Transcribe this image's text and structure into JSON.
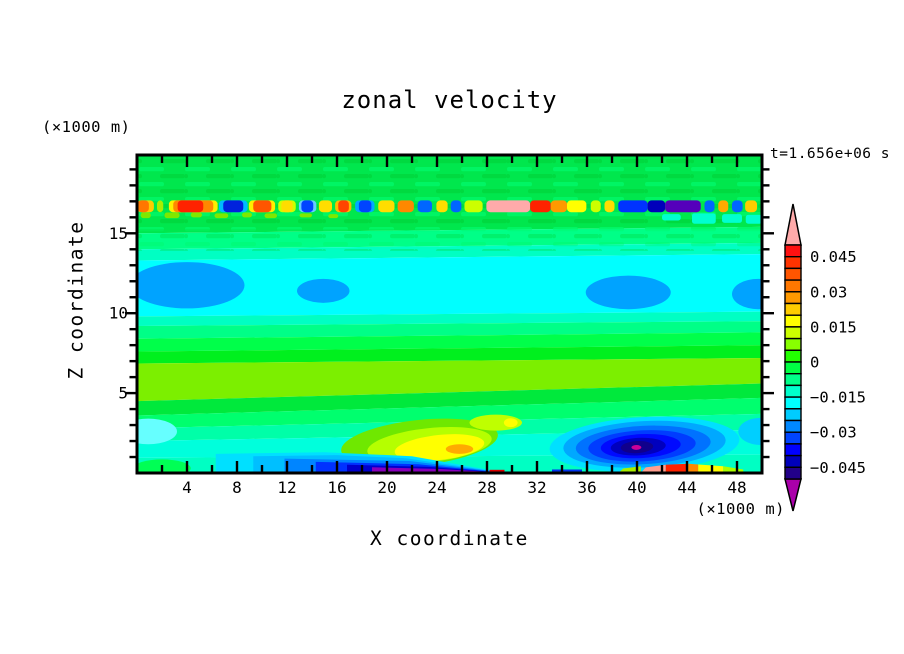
{
  "page": {
    "background": "#ffffff"
  },
  "chart_data": {
    "type": "filled_contour",
    "title": "zonal velocity",
    "timestamp": "t=1.656e+06 s",
    "xlabel": "X coordinate",
    "x_units": "(×1000 m)",
    "ylabel": "Z coordinate",
    "y_units": "(×1000 m)",
    "x_axis": {
      "min": 0,
      "max": 50,
      "major_step": 4,
      "minor_step": 2,
      "labels": [
        4,
        8,
        12,
        16,
        20,
        24,
        28,
        32,
        36,
        40,
        44,
        48
      ]
    },
    "z_axis": {
      "min": 0,
      "max": 19.9,
      "major_step": 5,
      "minor_step": 1,
      "labels": [
        5,
        10,
        15
      ]
    },
    "colorbar": {
      "labels": [
        "0.045",
        "0.03",
        "0.015",
        "0",
        "−0.015",
        "−0.03",
        "−0.045"
      ],
      "label_step": 0.015,
      "level_step": 0.005,
      "colors": [
        "#FF1111",
        "#FF3300",
        "#FF5500",
        "#FF7700",
        "#FF9900",
        "#FFCC00",
        "#FFFF00",
        "#CCFF00",
        "#88FF00",
        "#22FF00",
        "#00FF44",
        "#00FF88",
        "#00FFCC",
        "#00FFFF",
        "#00CCFF",
        "#0088FF",
        "#0044FF",
        "#0000FF",
        "#0000BB",
        "#220088"
      ],
      "over": "#FFAAAA",
      "under": "#AA00AA"
    },
    "field": {
      "bands": [
        [
          19.9,
          19.9,
          15.0,
          15.4,
          "#00E74D"
        ],
        [
          15.0,
          15.4,
          14.0,
          14.4,
          "#00FF87"
        ],
        [
          14.0,
          14.4,
          13.3,
          13.7,
          "#00FFC3"
        ],
        [
          13.3,
          13.7,
          9.8,
          10.1,
          "#00FFFF"
        ],
        [
          9.8,
          10.1,
          9.2,
          9.5,
          "#00FFC3"
        ],
        [
          9.2,
          9.5,
          8.4,
          8.8,
          "#00FF87"
        ],
        [
          8.4,
          8.8,
          7.6,
          8.0,
          "#00FF4A"
        ],
        [
          7.6,
          8.0,
          6.85,
          7.2,
          "#00F01E"
        ],
        [
          6.85,
          7.2,
          4.5,
          5.6,
          "#7CEF00"
        ],
        [
          4.5,
          5.6,
          3.6,
          4.7,
          "#00E93C"
        ],
        [
          3.6,
          4.7,
          2.8,
          3.7,
          "#00FF6E"
        ],
        [
          2.8,
          3.7,
          2.0,
          2.7,
          "#00FFA8"
        ],
        [
          2.0,
          2.7,
          0.95,
          1.15,
          "#00FFDC"
        ],
        [
          0.95,
          1.15,
          0,
          0,
          "#00FFC3"
        ]
      ],
      "mottle": {
        "light": "#00F768",
        "dark": "#00D83E",
        "z0": 15.25,
        "z1": 19.9,
        "z0b": 13.9,
        "z1b": 15.25
      },
      "features": [
        [
          "e",
          4.0,
          11.75,
          4.6,
          1.45,
          "#00A3FF",
          0
        ],
        [
          "e",
          14.9,
          11.4,
          2.1,
          0.75,
          "#00A3FF",
          0
        ],
        [
          "e",
          39.3,
          11.3,
          3.4,
          1.05,
          "#00A3FF",
          0
        ],
        [
          "e",
          49.7,
          11.2,
          2.1,
          0.95,
          "#00A3FF",
          0
        ],
        [
          "e",
          0.9,
          2.6,
          2.3,
          0.8,
          "#66FFFF",
          0
        ],
        [
          "e",
          2.0,
          0.3,
          2.3,
          0.55,
          "#00FF55",
          0
        ],
        [
          "e",
          22.6,
          1.9,
          6.3,
          1.42,
          "#6FE800",
          -6
        ],
        [
          "e",
          23.4,
          1.75,
          5.0,
          1.06,
          "#B5FF00",
          -6
        ],
        [
          "e",
          24.2,
          1.6,
          3.6,
          0.78,
          "#FFFF00",
          -6
        ],
        [
          "e",
          25.8,
          1.5,
          1.1,
          0.3,
          "#FFAA00",
          0
        ],
        [
          "e",
          28.7,
          3.15,
          2.1,
          0.5,
          "#BFFF00",
          0
        ],
        [
          "e",
          29.9,
          3.15,
          0.55,
          0.28,
          "#FFFF00",
          0
        ],
        [
          "p",
          "#00E0FF",
          [
            [
              6.3,
              0
            ],
            [
              6.3,
              1.2
            ],
            [
              15,
              1.3
            ],
            [
              22,
              1.05
            ],
            [
              28.5,
              0.15
            ],
            [
              28.5,
              0
            ]
          ]
        ],
        [
          "p",
          "#00BFFF",
          [
            [
              9.3,
              0
            ],
            [
              9.3,
              1.05
            ],
            [
              16,
              1.12
            ],
            [
              21.5,
              0.92
            ],
            [
              28.55,
              0.12
            ],
            [
              28.55,
              0
            ]
          ]
        ],
        [
          "p",
          "#0085FF",
          [
            [
              11.8,
              0
            ],
            [
              11.8,
              0.9
            ],
            [
              21.8,
              0.75
            ],
            [
              28.55,
              0.1
            ],
            [
              28.55,
              0
            ]
          ]
        ],
        [
          "p",
          "#0031FF",
          [
            [
              14.3,
              0
            ],
            [
              14.3,
              0.7
            ],
            [
              22.5,
              0.55
            ],
            [
              28.55,
              0.08
            ],
            [
              28.55,
              0
            ]
          ]
        ],
        [
          "p",
          "#0000CC",
          [
            [
              16.8,
              0
            ],
            [
              16.8,
              0.52
            ],
            [
              23.4,
              0.38
            ],
            [
              28.55,
              0.06
            ],
            [
              28.55,
              0
            ]
          ]
        ],
        [
          "p",
          "#8800BB",
          [
            [
              18.8,
              0
            ],
            [
              18.8,
              0.36
            ],
            [
              24.3,
              0.25
            ],
            [
              28.6,
              0.05
            ],
            [
              28.6,
              0
            ]
          ]
        ],
        [
          "e",
          40.6,
          1.8,
          7.6,
          1.7,
          "#00E0FF",
          -3
        ],
        [
          "e",
          40.6,
          1.8,
          6.5,
          1.45,
          "#00A8FF",
          -3
        ],
        [
          "e",
          40.5,
          1.75,
          5.4,
          1.2,
          "#0072FF",
          -3
        ],
        [
          "e",
          40.4,
          1.7,
          4.3,
          0.97,
          "#003CFF",
          -3
        ],
        [
          "e",
          40.3,
          1.68,
          3.2,
          0.75,
          "#000AFF",
          -3
        ],
        [
          "e",
          40.1,
          1.65,
          2.2,
          0.55,
          "#0000BE",
          -3
        ],
        [
          "e",
          40.0,
          1.62,
          1.3,
          0.38,
          "#10008C",
          -3
        ],
        [
          "e",
          39.95,
          1.6,
          0.4,
          0.15,
          "#CC0099",
          0
        ],
        [
          "e",
          49.9,
          2.6,
          1.8,
          0.85,
          "#00CFFF",
          0
        ],
        [
          "r",
          33.2,
          35.6,
          0,
          0.22,
          "#0033EE"
        ],
        [
          "p",
          "#AAEE00",
          [
            [
              38.5,
              0
            ],
            [
              38.9,
              0.28
            ],
            [
              40.3,
              0.42
            ],
            [
              40.3,
              0
            ]
          ]
        ],
        [
          "r",
          28.2,
          29.4,
          0,
          0.2,
          "#DD0000"
        ],
        [
          "p",
          "#FF9E8F",
          [
            [
              40.3,
              0
            ],
            [
              40.7,
              0.35
            ],
            [
              42.3,
              0.52
            ],
            [
              42.3,
              0
            ]
          ]
        ],
        [
          "p",
          "#FF2200",
          [
            [
              42.3,
              0
            ],
            [
              42.3,
              0.52
            ],
            [
              44.1,
              0.58
            ],
            [
              44.1,
              0
            ]
          ]
        ],
        [
          "p",
          "#FF8800",
          [
            [
              44.1,
              0
            ],
            [
              44.1,
              0.58
            ],
            [
              44.9,
              0.53
            ],
            [
              44.9,
              0
            ]
          ]
        ],
        [
          "p",
          "#FFFF00",
          [
            [
              44.9,
              0
            ],
            [
              44.9,
              0.53
            ],
            [
              46.9,
              0.42
            ],
            [
              46.9,
              0
            ]
          ]
        ],
        [
          "p",
          "#AAFF00",
          [
            [
              46.9,
              0
            ],
            [
              46.9,
              0.42
            ],
            [
              48.5,
              0.22
            ],
            [
              48.5,
              0
            ]
          ]
        ]
      ],
      "stripe": {
        "z0": 16.32,
        "z1": 17.06,
        "spots": [
          [
            0.0,
            1.35,
            "#FFCC00"
          ],
          [
            0.05,
            0.95,
            "#FF7700"
          ],
          [
            1.6,
            2.1,
            "#AAEE00"
          ],
          [
            2.55,
            6.45,
            "#FFEE00"
          ],
          [
            2.9,
            6.1,
            "#FF8800"
          ],
          [
            3.25,
            5.3,
            "#FF2200"
          ],
          [
            6.55,
            8.85,
            "#00BBFF"
          ],
          [
            6.9,
            8.5,
            "#0022DD"
          ],
          [
            8.95,
            11.05,
            "#FFEE00"
          ],
          [
            9.3,
            10.75,
            "#FF5500"
          ],
          [
            11.3,
            12.7,
            "#CCFF00"
          ],
          [
            11.55,
            12.45,
            "#FFDD00"
          ],
          [
            12.95,
            14.35,
            "#66CCFF"
          ],
          [
            13.15,
            14.1,
            "#0044FF"
          ],
          [
            14.55,
            15.6,
            "#FFDD00"
          ],
          [
            15.85,
            17.15,
            "#FFBB00"
          ],
          [
            16.1,
            16.95,
            "#FF4400"
          ],
          [
            17.45,
            19.0,
            "#00AAFF"
          ],
          [
            17.75,
            18.75,
            "#0044FF"
          ],
          [
            19.3,
            20.6,
            "#FFDD00"
          ],
          [
            20.85,
            22.15,
            "#FF8800"
          ],
          [
            22.45,
            23.6,
            "#0066FF"
          ],
          [
            23.95,
            24.85,
            "#FFDD00"
          ],
          [
            25.1,
            25.95,
            "#0066FF"
          ],
          [
            26.2,
            27.65,
            "#CCFF00"
          ],
          [
            27.95,
            31.45,
            "#FFAAAA"
          ],
          [
            31.45,
            33.1,
            "#FF2200"
          ],
          [
            33.1,
            34.4,
            "#FF9900"
          ],
          [
            34.4,
            35.95,
            "#FFFF00"
          ],
          [
            36.3,
            37.1,
            "#CCFF00"
          ],
          [
            37.4,
            38.2,
            "#FFDD00"
          ],
          [
            38.5,
            40.85,
            "#0033FF"
          ],
          [
            40.85,
            42.25,
            "#0000BB"
          ],
          [
            42.25,
            45.1,
            "#5500BB"
          ],
          [
            45.4,
            46.2,
            "#0066FF"
          ],
          [
            46.5,
            47.3,
            "#FFAA00"
          ],
          [
            47.6,
            48.45,
            "#0066FF"
          ],
          [
            48.65,
            49.6,
            "#FFCC00"
          ]
        ]
      },
      "specks": [
        [
          0.3,
          1.1,
          15.95,
          16.3,
          "#7FE800"
        ],
        [
          2.2,
          3.4,
          15.95,
          16.3,
          "#7FE800"
        ],
        [
          4.3,
          5.2,
          16.0,
          16.3,
          "#7FE800"
        ],
        [
          6.2,
          7.3,
          15.95,
          16.25,
          "#7FE800"
        ],
        [
          8.4,
          9.2,
          16.0,
          16.3,
          "#7FE800"
        ],
        [
          10.2,
          11.2,
          15.95,
          16.25,
          "#7FE800"
        ],
        [
          13.0,
          14.0,
          16.0,
          16.25,
          "#7FE800"
        ],
        [
          15.3,
          16.1,
          15.95,
          16.2,
          "#7FE800"
        ],
        [
          42.0,
          43.5,
          15.8,
          16.2,
          "#00FFD0"
        ],
        [
          44.4,
          46.3,
          15.6,
          16.25,
          "#00FFD0"
        ],
        [
          46.8,
          48.4,
          15.65,
          16.2,
          "#00FFD0"
        ],
        [
          48.7,
          50,
          15.6,
          16.15,
          "#00FFD0"
        ]
      ]
    }
  }
}
